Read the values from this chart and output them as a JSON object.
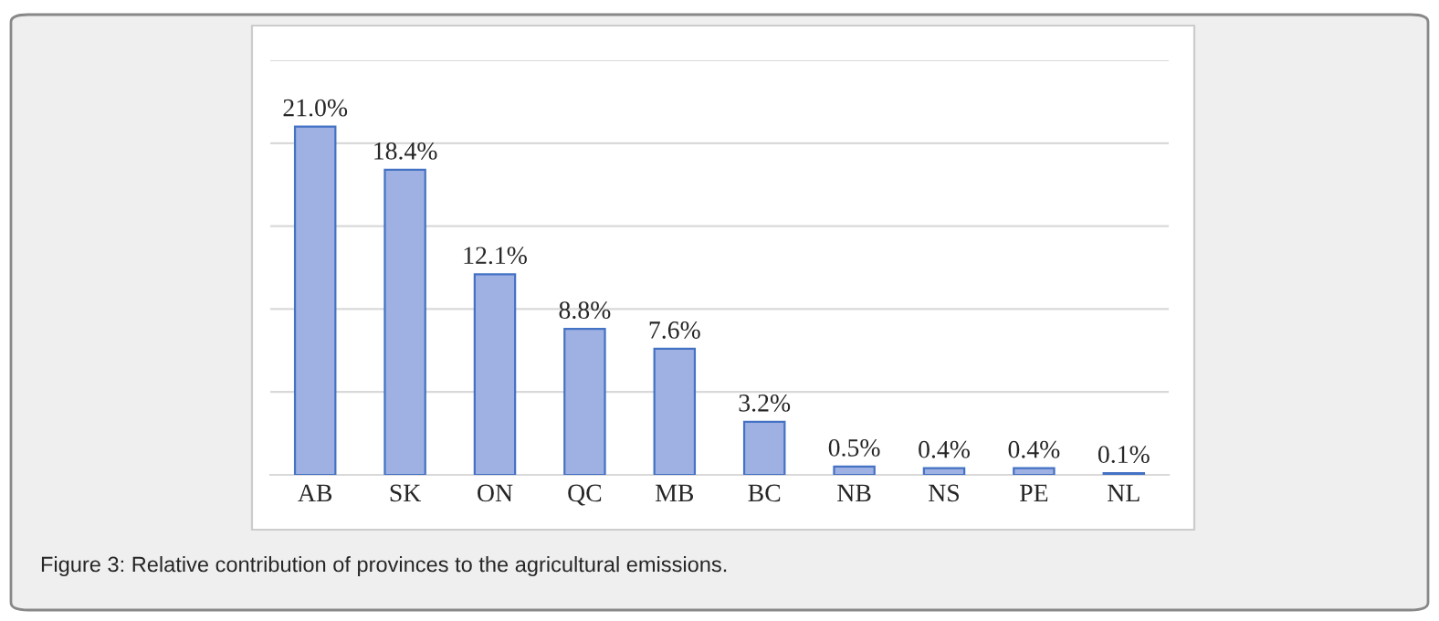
{
  "chart_data": {
    "type": "bar",
    "categories": [
      "AB",
      "SK",
      "ON",
      "QC",
      "MB",
      "BC",
      "NB",
      "NS",
      "PE",
      "NL"
    ],
    "values": [
      21.0,
      18.4,
      12.1,
      8.8,
      7.6,
      3.2,
      0.5,
      0.4,
      0.4,
      0.1
    ],
    "value_labels": [
      "21.0%",
      "18.4%",
      "12.1%",
      "8.8%",
      "7.6%",
      "3.2%",
      "0.5%",
      "0.4%",
      "0.4%",
      "0.1%"
    ],
    "color": "#9fb1e2",
    "ylim": [
      0,
      25
    ],
    "yticks": [
      {
        "value": 0,
        "label": null
      },
      {
        "value": 5,
        "label": null
      },
      {
        "value": 10,
        "label": null
      },
      {
        "value": 15,
        "label": null
      },
      {
        "value": 20,
        "label": null
      },
      {
        "value": 25,
        "label": null
      }
    ],
    "tick_labels": "x",
    "grid": "y",
    "annotations": [
      "Figure 3: Relative contribution of provinces to the agricultural emissions."
    ]
  }
}
